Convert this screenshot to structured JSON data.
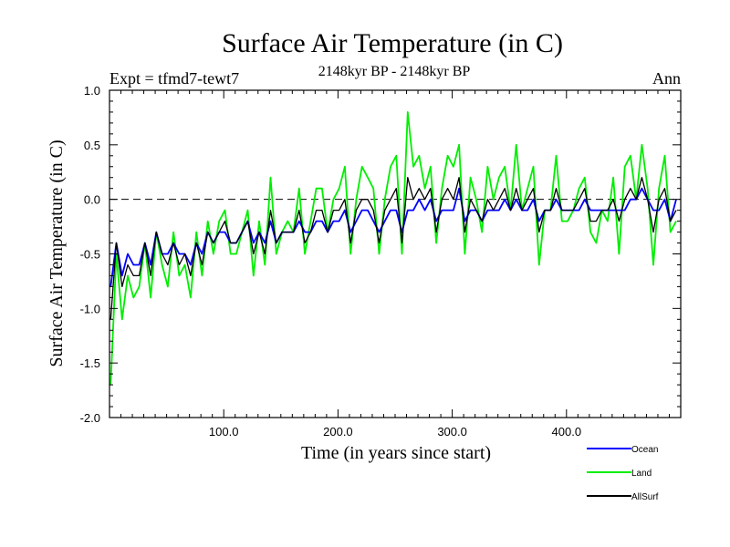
{
  "chart_data": {
    "type": "line",
    "title": "Surface Air Temperature (in C)",
    "subtitle": "2148kyr BP - 2148kyr BP",
    "experiment_label": "Expt = tfmd7-tewt7",
    "period_label": "Ann",
    "xlabel": "Time (in years since start)",
    "ylabel": "Surface Air Temperature (in C)",
    "xlim": [
      0,
      500
    ],
    "ylim": [
      -2.0,
      1.0
    ],
    "x_ticks": [
      100,
      200,
      300,
      400
    ],
    "x_tick_labels": [
      "100.0",
      "200.0",
      "300.0",
      "400.0"
    ],
    "y_ticks": [
      1.0,
      0.5,
      0.0,
      -0.5,
      -1.0,
      -1.5,
      -2.0
    ],
    "y_tick_labels": [
      "1.0",
      "0.5",
      "0.0",
      "-0.5",
      "-1.0",
      "-1.5",
      "-2.0"
    ],
    "reference_line": 0.0,
    "x_start": 1,
    "x_step": 5,
    "series": [
      {
        "name": "Ocean",
        "color": "#0000ff",
        "values": [
          -0.8,
          -0.4,
          -0.7,
          -0.5,
          -0.6,
          -0.6,
          -0.4,
          -0.6,
          -0.3,
          -0.5,
          -0.5,
          -0.4,
          -0.5,
          -0.5,
          -0.6,
          -0.4,
          -0.5,
          -0.3,
          -0.4,
          -0.3,
          -0.3,
          -0.4,
          -0.4,
          -0.3,
          -0.2,
          -0.4,
          -0.3,
          -0.4,
          -0.2,
          -0.4,
          -0.3,
          -0.3,
          -0.3,
          -0.2,
          -0.3,
          -0.3,
          -0.2,
          -0.2,
          -0.3,
          -0.2,
          -0.2,
          -0.1,
          -0.3,
          -0.2,
          -0.1,
          -0.1,
          -0.2,
          -0.3,
          -0.2,
          -0.1,
          -0.1,
          -0.3,
          -0.1,
          -0.1,
          0.0,
          -0.1,
          0.0,
          -0.2,
          -0.1,
          -0.1,
          -0.1,
          0.1,
          -0.2,
          -0.1,
          -0.1,
          -0.2,
          -0.1,
          -0.1,
          -0.1,
          0.0,
          -0.1,
          0.0,
          -0.1,
          -0.1,
          0.0,
          -0.2,
          -0.1,
          -0.1,
          0.0,
          -0.1,
          -0.1,
          -0.1,
          -0.1,
          0.0,
          -0.1,
          -0.1,
          -0.1,
          -0.1,
          -0.1,
          -0.1,
          -0.1,
          0.0,
          0.0,
          0.1,
          0.0,
          -0.1,
          -0.1,
          0.0,
          -0.2,
          0.0
        ]
      },
      {
        "name": "Land",
        "color": "#00ee00",
        "values": [
          -1.7,
          -0.5,
          -1.1,
          -0.7,
          -0.9,
          -0.8,
          -0.4,
          -0.9,
          -0.3,
          -0.6,
          -0.8,
          -0.3,
          -0.7,
          -0.6,
          -0.9,
          -0.3,
          -0.7,
          -0.2,
          -0.5,
          -0.2,
          -0.1,
          -0.5,
          -0.5,
          -0.3,
          -0.1,
          -0.7,
          -0.2,
          -0.6,
          0.2,
          -0.5,
          -0.3,
          -0.2,
          -0.3,
          0.1,
          -0.5,
          -0.2,
          0.1,
          0.1,
          -0.3,
          0.0,
          0.1,
          0.3,
          -0.5,
          0.0,
          0.3,
          0.2,
          0.1,
          -0.5,
          0.0,
          0.3,
          0.4,
          -0.5,
          0.8,
          0.3,
          0.4,
          0.1,
          0.3,
          -0.4,
          0.1,
          0.4,
          0.3,
          0.5,
          -0.5,
          0.2,
          0.0,
          -0.3,
          0.3,
          0.0,
          0.2,
          0.3,
          -0.1,
          0.5,
          -0.1,
          0.1,
          0.3,
          -0.6,
          -0.1,
          -0.1,
          0.4,
          -0.2,
          -0.2,
          -0.1,
          0.1,
          0.2,
          -0.3,
          -0.4,
          -0.1,
          -0.2,
          0.2,
          -0.5,
          0.3,
          0.4,
          0.0,
          0.5,
          0.1,
          -0.6,
          0.1,
          0.4,
          -0.3,
          -0.2
        ]
      },
      {
        "name": "AllSurf",
        "color": "#000000",
        "values": [
          -1.1,
          -0.4,
          -0.8,
          -0.6,
          -0.7,
          -0.7,
          -0.4,
          -0.7,
          -0.3,
          -0.5,
          -0.6,
          -0.4,
          -0.6,
          -0.5,
          -0.7,
          -0.4,
          -0.6,
          -0.3,
          -0.4,
          -0.3,
          -0.2,
          -0.4,
          -0.4,
          -0.3,
          -0.2,
          -0.5,
          -0.3,
          -0.5,
          -0.1,
          -0.4,
          -0.3,
          -0.3,
          -0.3,
          -0.1,
          -0.4,
          -0.3,
          -0.1,
          -0.1,
          -0.3,
          -0.1,
          -0.1,
          0.0,
          -0.4,
          -0.1,
          0.0,
          0.0,
          -0.1,
          -0.4,
          -0.1,
          0.0,
          0.1,
          -0.4,
          0.2,
          0.0,
          0.1,
          0.0,
          0.1,
          -0.3,
          0.0,
          0.1,
          0.0,
          0.2,
          -0.3,
          0.0,
          -0.1,
          -0.2,
          0.0,
          -0.1,
          0.0,
          0.1,
          -0.1,
          0.1,
          -0.1,
          0.0,
          0.1,
          -0.3,
          -0.1,
          -0.1,
          0.1,
          -0.1,
          -0.1,
          -0.1,
          0.0,
          0.1,
          -0.2,
          -0.2,
          -0.1,
          -0.1,
          0.0,
          -0.2,
          0.0,
          0.1,
          0.0,
          0.2,
          0.0,
          -0.3,
          0.0,
          0.1,
          -0.2,
          -0.1
        ]
      }
    ]
  }
}
